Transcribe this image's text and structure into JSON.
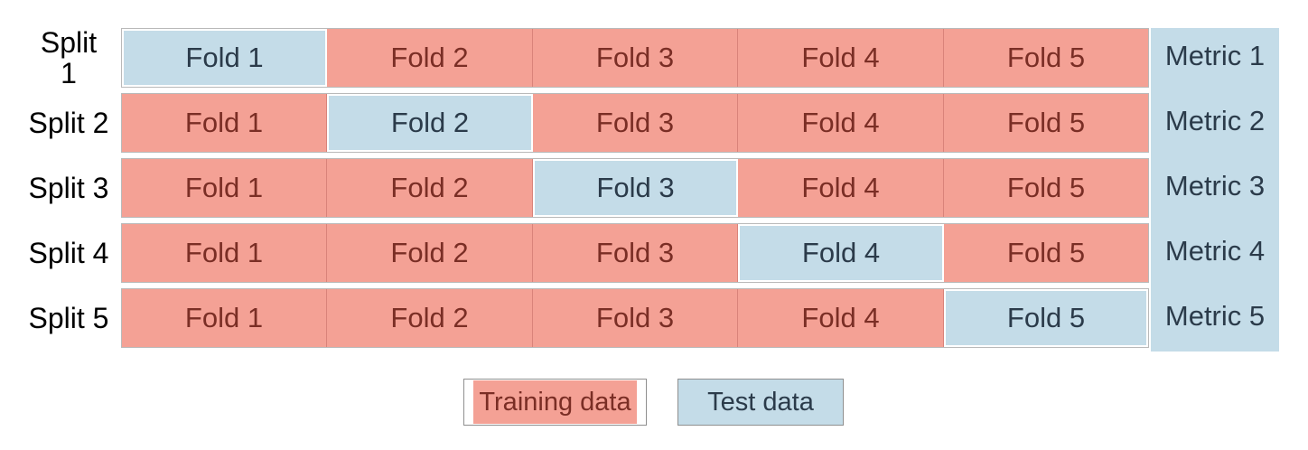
{
  "colors": {
    "training": "#f4a195",
    "test": "#c4dce8",
    "training_text": "#7a2e25",
    "test_text": "#2b3b4a"
  },
  "splits": [
    {
      "label": "Split 1",
      "label_lines": [
        "Split",
        "1"
      ],
      "test_fold": 1,
      "metric": "Metric 1"
    },
    {
      "label": "Split 2",
      "label_lines": [
        "Split 2"
      ],
      "test_fold": 2,
      "metric": "Metric 2"
    },
    {
      "label": "Split 3",
      "label_lines": [
        "Split 3"
      ],
      "test_fold": 3,
      "metric": "Metric 3"
    },
    {
      "label": "Split 4",
      "label_lines": [
        "Split 4"
      ],
      "test_fold": 4,
      "metric": "Metric 4"
    },
    {
      "label": "Split 5",
      "label_lines": [
        "Split 5"
      ],
      "test_fold": 5,
      "metric": "Metric 5"
    }
  ],
  "folds": [
    "Fold 1",
    "Fold 2",
    "Fold 3",
    "Fold 4",
    "Fold 5"
  ],
  "legend": {
    "training_label": "Training data",
    "test_label": "Test data"
  }
}
